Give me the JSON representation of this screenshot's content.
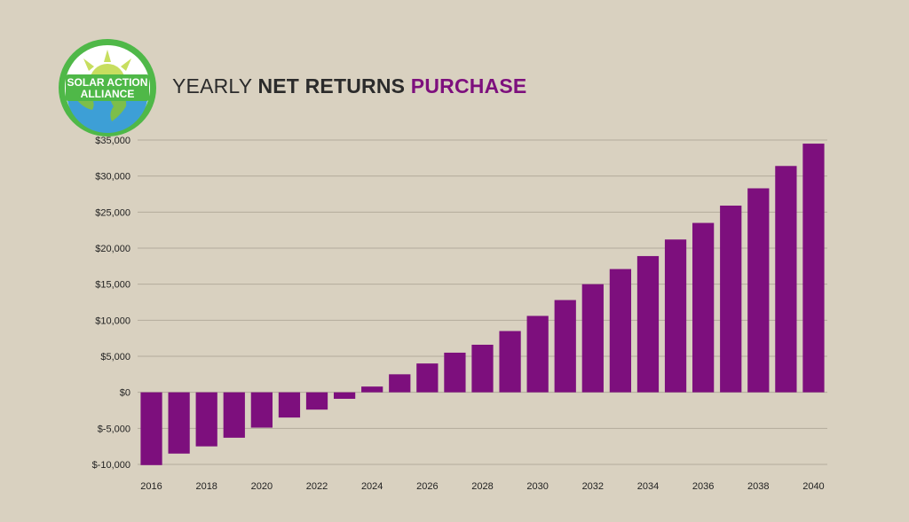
{
  "logo": {
    "line1": "SOLAR ACTION",
    "line2": "ALLIANCE",
    "colors": {
      "ring": "#4fb848",
      "sun": "#c7de5f",
      "water": "#3d9fd6",
      "land": "#7dbe4a"
    }
  },
  "title": {
    "part1": "YEARLY ",
    "part2": "NET RETURNS ",
    "part3": "PURCHASE"
  },
  "chart_data": {
    "type": "bar",
    "title": "YEARLY NET RETURNS PURCHASE",
    "xlabel": "",
    "ylabel": "",
    "ylim": [
      -10000,
      35000
    ],
    "yticks": [
      35000,
      30000,
      25000,
      20000,
      15000,
      10000,
      5000,
      0,
      -5000,
      -10000
    ],
    "ytick_labels": [
      "$35,000",
      "$30,000",
      "$25,000",
      "$20,000",
      "$15,000",
      "$10,000",
      "$5,000",
      "$0",
      "$-5,000",
      "$-10,000"
    ],
    "x_tick_labels": [
      "2016",
      "2018",
      "2020",
      "2022",
      "2024",
      "2026",
      "2028",
      "2030",
      "2032",
      "2034",
      "2036",
      "2038",
      "2040"
    ],
    "categories": [
      "2016",
      "2017",
      "2018",
      "2019",
      "2020",
      "2021",
      "2022",
      "2023",
      "2024",
      "2025",
      "2026",
      "2027",
      "2028",
      "2029",
      "2030",
      "2031",
      "2032",
      "2033",
      "2034",
      "2035",
      "2036",
      "2037",
      "2038",
      "2039",
      "2040"
    ],
    "values": [
      -10100,
      -8500,
      -7500,
      -6300,
      -4900,
      -3500,
      -2400,
      -900,
      800,
      2500,
      4000,
      5500,
      6600,
      8500,
      10600,
      12800,
      15000,
      17100,
      18900,
      21200,
      23500,
      25900,
      28300,
      31400,
      34500
    ],
    "bar_color": "#7d0f7d",
    "grid": true,
    "legend": "none"
  }
}
